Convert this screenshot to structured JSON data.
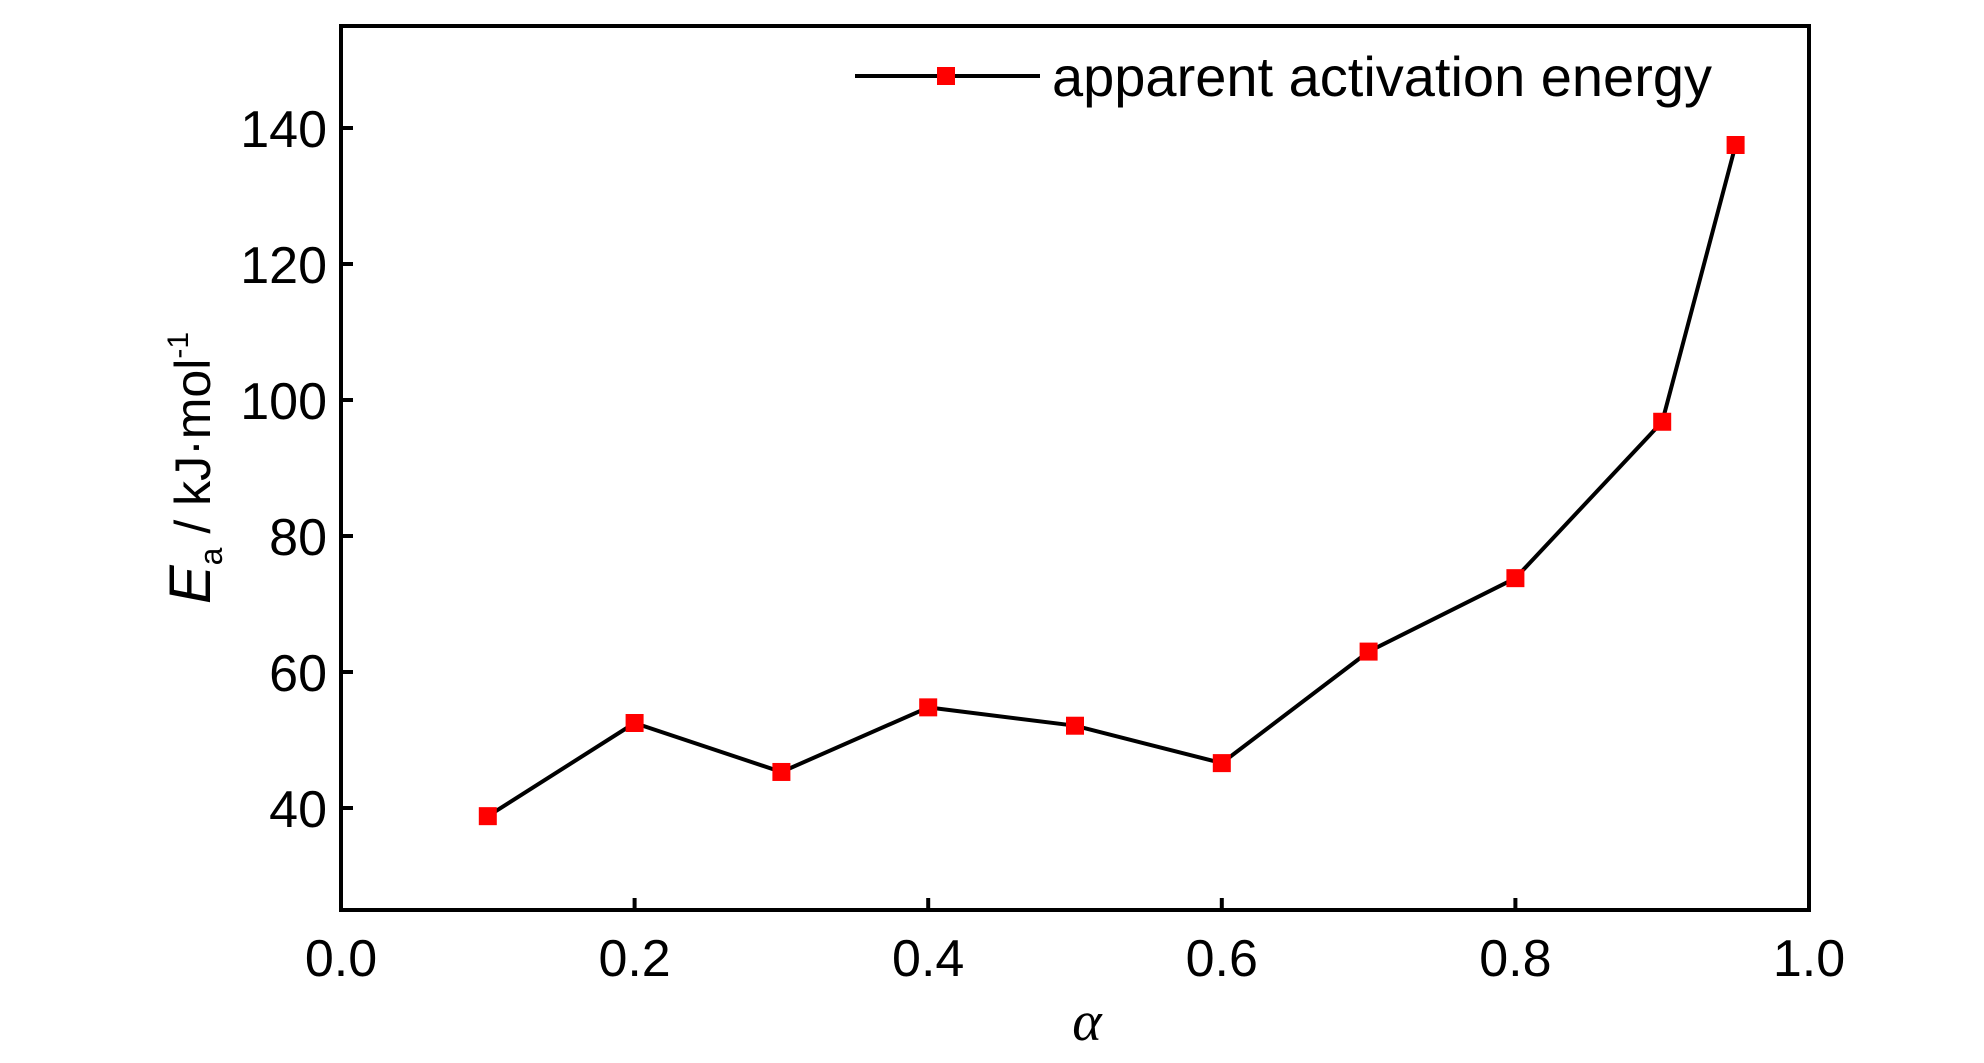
{
  "chart_data": {
    "type": "line",
    "x": [
      0.1,
      0.2,
      0.3,
      0.4,
      0.5,
      0.6,
      0.7,
      0.8,
      0.9,
      0.95
    ],
    "series": [
      {
        "name": "apparent activation energy",
        "values": [
          38.8,
          52.5,
          45.3,
          54.8,
          52.1,
          46.6,
          63.0,
          73.8,
          96.8,
          137.5
        ],
        "line_color": "#000000",
        "marker_color": "#ff0000",
        "marker": "square"
      }
    ],
    "xlabel": "α",
    "ylabel": {
      "symbol": "E",
      "subscript": "a",
      "unit": " / kJ·mol",
      "superscript": "-1"
    },
    "xlim": [
      0.0,
      1.0
    ],
    "ylim": [
      25,
      155
    ],
    "xticks": [
      0.0,
      0.2,
      0.4,
      0.6,
      0.8,
      1.0
    ],
    "xtick_labels": [
      "0.0",
      "0.2",
      "0.4",
      "0.6",
      "0.8",
      "1.0"
    ],
    "yticks": [
      40,
      60,
      80,
      100,
      120,
      140
    ],
    "ytick_labels": [
      "40",
      "60",
      "80",
      "100",
      "120",
      "140"
    ],
    "grid": false,
    "legend_position": "top-right"
  }
}
